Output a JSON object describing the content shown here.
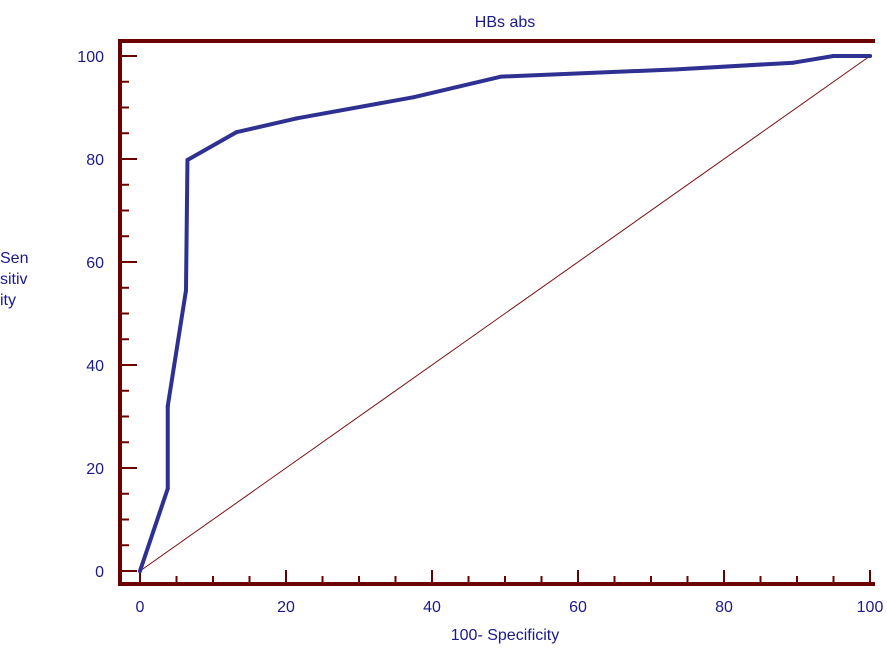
{
  "chart_data": {
    "type": "line",
    "title": "HBs abs",
    "xlabel": "100- Specificity",
    "ylabel_lines": [
      "Sen",
      "sitiv",
      "ity"
    ],
    "xlim": [
      0,
      100
    ],
    "ylim": [
      0,
      100
    ],
    "x_ticks": [
      0,
      20,
      40,
      60,
      80,
      100
    ],
    "y_ticks": [
      0,
      20,
      40,
      60,
      80,
      100
    ],
    "series": [
      {
        "values": [
          {
            "x": 0,
            "y": 0
          },
          {
            "x": 3.8,
            "y": 16
          },
          {
            "x": 3.8,
            "y": 32
          },
          {
            "x": 6.3,
            "y": 54.5
          },
          {
            "x": 6.5,
            "y": 79.8
          },
          {
            "x": 13.2,
            "y": 85.2
          },
          {
            "x": 21.5,
            "y": 87.9
          },
          {
            "x": 37.5,
            "y": 92
          },
          {
            "x": 49.5,
            "y": 96
          },
          {
            "x": 73.5,
            "y": 97.4
          },
          {
            "x": 89.5,
            "y": 98.7
          },
          {
            "x": 95,
            "y": 100
          },
          {
            "x": 100,
            "y": 100
          }
        ],
        "color": "#2e3192"
      },
      {
        "values": [
          {
            "x": 0,
            "y": 0
          },
          {
            "x": 100,
            "y": 100
          }
        ],
        "color": "#7b0f0f"
      }
    ],
    "colors": {
      "axis": "#6b0000",
      "text": "#1a1a8c"
    },
    "grid": false
  }
}
